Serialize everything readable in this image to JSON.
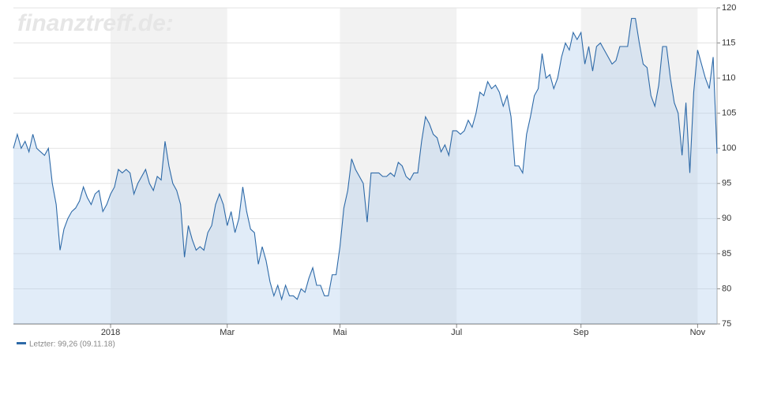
{
  "chart_data": {
    "type": "line",
    "watermark": "finanztreff.de:",
    "series": [
      {
        "name": "Letzter: 99,26 (09.11.18)",
        "color": "#2e6aa8",
        "values": [
          100,
          102,
          100,
          101,
          99.5,
          102,
          100,
          99.5,
          99,
          100,
          95,
          92,
          85.5,
          88.5,
          90,
          91,
          91.5,
          92.5,
          94.5,
          93,
          92,
          93.5,
          94,
          91,
          92,
          93.5,
          94.5,
          97,
          96.5,
          97,
          96.5,
          93.5,
          95,
          96,
          97,
          95,
          94,
          96,
          95.5,
          101,
          97.5,
          95,
          94,
          92,
          84.5,
          89,
          87,
          85.5,
          86,
          85.5,
          88,
          89,
          92,
          93.5,
          92,
          89,
          91,
          88,
          90,
          94.5,
          91,
          88.5,
          88,
          83.5,
          86,
          84,
          81,
          79,
          80.5,
          78.5,
          80.5,
          79,
          79,
          78.5,
          80,
          79.5,
          81.5,
          83,
          80.5,
          80.5,
          79,
          79,
          82,
          82,
          86,
          91.5,
          94,
          98.5,
          97,
          96,
          95,
          89.5,
          96.5,
          96.5,
          96.5,
          96,
          96,
          96.5,
          96,
          98,
          97.5,
          96,
          95.5,
          96.5,
          96.5,
          101,
          104.5,
          103.5,
          102,
          101.5,
          99.5,
          100.5,
          99,
          102.5,
          102.5,
          102,
          102.5,
          104,
          103,
          105,
          108,
          107.5,
          109.5,
          108.5,
          109,
          108,
          106,
          107.5,
          104.5,
          97.5,
          97.5,
          96.5,
          102,
          104.5,
          107.5,
          108.5,
          113.5,
          110,
          110.5,
          108.5,
          110,
          113,
          115,
          114,
          116.5,
          115.5,
          116.5,
          112,
          114.5,
          111,
          114.5,
          115,
          114,
          113,
          112,
          112.5,
          114.5,
          114.5,
          114.5,
          118.5,
          118.5,
          115,
          112,
          111.5,
          107.5,
          106,
          109,
          114.5,
          114.5,
          110,
          106.5,
          105,
          99,
          106.5,
          96.5,
          108,
          114,
          112,
          110,
          108.5,
          113,
          99.26
        ]
      }
    ],
    "xlim": [
      0,
      181
    ],
    "xticks": [
      {
        "value": 25,
        "label": "2018"
      },
      {
        "value": 55,
        "label": "Mar"
      },
      {
        "value": 84,
        "label": "Mai"
      },
      {
        "value": 114,
        "label": "Jul"
      },
      {
        "value": 146,
        "label": "Sep"
      },
      {
        "value": 176,
        "label": "Nov"
      }
    ],
    "ylim": [
      75,
      120
    ],
    "yticks": [
      75,
      80,
      85,
      90,
      95,
      100,
      105,
      110,
      115,
      120
    ],
    "grid": true
  }
}
